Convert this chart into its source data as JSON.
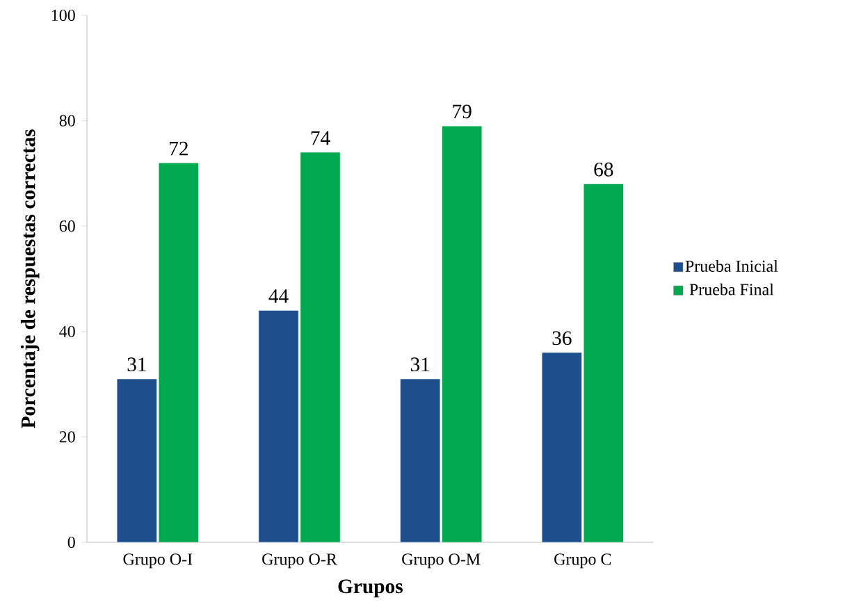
{
  "chart_data": {
    "type": "bar",
    "xlabel": "Grupos",
    "ylabel": "Porcentaje de respuestas correctas",
    "categories": [
      "Grupo O-I",
      "Grupo O-R",
      "Grupo O-M",
      "Grupo C"
    ],
    "series": [
      {
        "name": "Prueba Inicial",
        "color": "#1f4e8c",
        "values": [
          31,
          44,
          31,
          36
        ]
      },
      {
        "name": "Prueba Final",
        "color": "#00a84f",
        "values": [
          72,
          74,
          79,
          68
        ]
      }
    ],
    "ylim": [
      0,
      100
    ],
    "yticks": [
      0,
      20,
      40,
      60,
      80,
      100
    ],
    "data_labels": true,
    "legend": "right",
    "grid": false
  }
}
